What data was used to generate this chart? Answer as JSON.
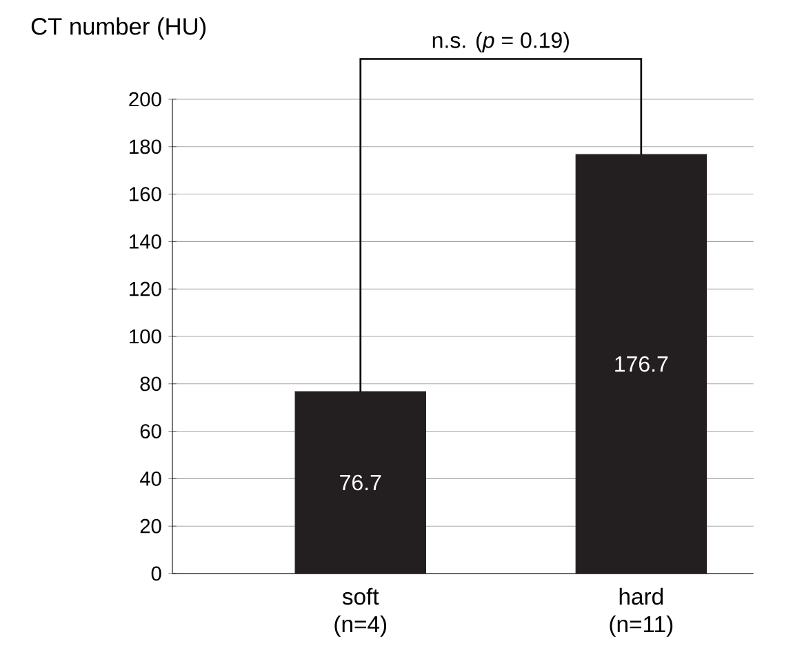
{
  "chart_data": {
    "type": "bar",
    "ylabel": "CT number (HU)",
    "categories": [
      "soft (n=4)",
      "hard (n=11)"
    ],
    "values": [
      76.7,
      176.7
    ],
    "color": "#231f20",
    "ylim": [
      0,
      200
    ],
    "yticks": [
      0,
      20,
      40,
      60,
      80,
      100,
      120,
      140,
      160,
      180,
      200
    ],
    "grid": "y",
    "data_labels": true,
    "annotations": [
      "n.s. (*p* = 0.19)"
    ]
  }
}
